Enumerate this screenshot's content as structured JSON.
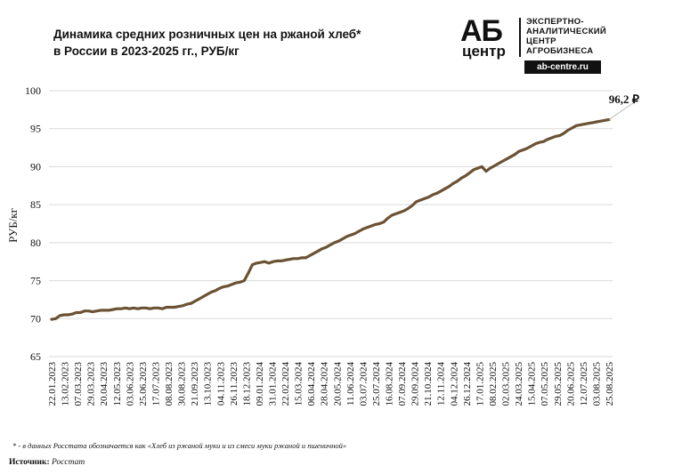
{
  "title": {
    "line1": "Динамика средних розничных цен на ржаной хлеб*",
    "line2": "в России в 2023-2025 гг., РУБ/кг"
  },
  "logo": {
    "mark_top": "АБ",
    "mark_bottom": "центр",
    "text_line1": "ЭКСПЕРТНО-",
    "text_line2": "АНАЛИТИЧЕСКИЙ",
    "text_line3": "ЦЕНТР",
    "text_line4": "АГРОБИЗНЕСА",
    "site": "ab-centre.ru"
  },
  "footnote": "* - в данных Росстата обозначается как «Хлеб из ржаной муки и из смеси муки ржаной и пшеничной»",
  "source": {
    "label": "Источник",
    "value": "Росстат"
  },
  "colors": {
    "line": "#6b5233",
    "grid": "#d9d9d9",
    "text": "#111111"
  },
  "chart_data": {
    "type": "line",
    "title": "Динамика средних розничных цен на ржаной хлеб* в России в 2023-2025 гг., РУБ/кг",
    "xlabel": "",
    "ylabel": "РУБ/кг",
    "ylim": [
      65,
      100
    ],
    "yticks": [
      65,
      70,
      75,
      80,
      85,
      90,
      95,
      100
    ],
    "grid": "horizontal",
    "legend": "none",
    "xtick_labels": [
      "22.01.2023",
      "13.02.2023",
      "07.03.2023",
      "29.03.2023",
      "20.04.2023",
      "12.05.2023",
      "03.06.2023",
      "25.06.2023",
      "17.07.2023",
      "08.08.2023",
      "30.08.2023",
      "21.09.2023",
      "13.10.2023",
      "04.11.2023",
      "26.11.2023",
      "18.12.2023",
      "09.01.2024",
      "31.01.2024",
      "22.02.2024",
      "15.03.2024",
      "06.04.2024",
      "28.04.2024",
      "20.05.2024",
      "11.06.2024",
      "03.07.2024",
      "25.07.2024",
      "16.08.2024",
      "07.09.2024",
      "29.09.2024",
      "21.10.2024",
      "12.11.2024",
      "04.12.2024",
      "26.12.2024",
      "17.01.2025",
      "08.02.2025",
      "02.03.2025",
      "24.03.2025",
      "15.04.2025",
      "07.05.2025",
      "29.05.2025",
      "20.06.2025",
      "12.07.2025",
      "03.08.2025",
      "25.08.2025"
    ],
    "last_value_label": "96,2 ₽",
    "values": [
      69.9,
      70.0,
      70.4,
      70.5,
      70.5,
      70.6,
      70.8,
      70.8,
      71.0,
      71.0,
      70.9,
      71.0,
      71.1,
      71.1,
      71.1,
      71.2,
      71.3,
      71.3,
      71.4,
      71.3,
      71.4,
      71.3,
      71.4,
      71.4,
      71.3,
      71.4,
      71.4,
      71.3,
      71.5,
      71.5,
      71.5,
      71.6,
      71.7,
      71.9,
      72.0,
      72.3,
      72.6,
      72.9,
      73.2,
      73.5,
      73.7,
      74.0,
      74.2,
      74.3,
      74.5,
      74.7,
      74.8,
      75.0,
      76.0,
      77.1,
      77.3,
      77.4,
      77.5,
      77.3,
      77.5,
      77.6,
      77.6,
      77.7,
      77.8,
      77.9,
      77.9,
      78.0,
      78.0,
      78.3,
      78.6,
      78.9,
      79.2,
      79.4,
      79.7,
      80.0,
      80.2,
      80.5,
      80.8,
      81.0,
      81.2,
      81.5,
      81.8,
      82.0,
      82.2,
      82.4,
      82.5,
      82.7,
      83.2,
      83.6,
      83.8,
      84.0,
      84.2,
      84.5,
      84.9,
      85.4,
      85.6,
      85.8,
      86.0,
      86.3,
      86.5,
      86.8,
      87.1,
      87.4,
      87.8,
      88.1,
      88.5,
      88.8,
      89.2,
      89.6,
      89.8,
      90.0,
      89.4,
      89.8,
      90.1,
      90.4,
      90.7,
      91.0,
      91.3,
      91.6,
      92.0,
      92.2,
      92.4,
      92.7,
      93.0,
      93.2,
      93.3,
      93.6,
      93.8,
      94.0,
      94.1,
      94.4,
      94.8,
      95.1,
      95.4,
      95.5,
      95.6,
      95.7,
      95.8,
      95.9,
      96.0,
      96.1,
      96.2
    ]
  }
}
